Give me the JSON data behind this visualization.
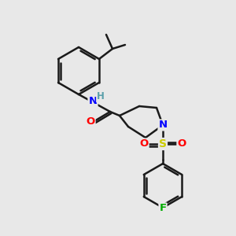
{
  "bg_color": "#e8e8e8",
  "line_color": "#1a1a1a",
  "bond_width": 1.8,
  "atom_colors": {
    "N": "#0000ff",
    "O": "#ff0000",
    "S": "#cccc00",
    "F": "#00aa00",
    "H": "#5a9faa"
  },
  "figsize": [
    3.0,
    3.0
  ],
  "dpi": 100
}
